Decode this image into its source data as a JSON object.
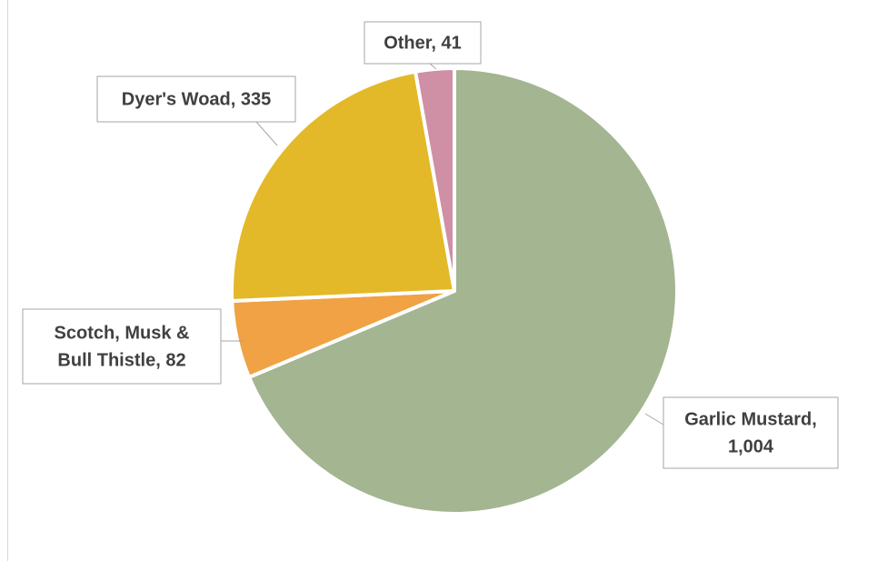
{
  "chart_data": {
    "type": "pie",
    "title": "",
    "start_angle_deg": 0,
    "direction": "clockwise",
    "slices": [
      {
        "name": "Garlic Mustard",
        "value": 1004,
        "label_lines": [
          "Garlic Mustard,",
          "1,004"
        ],
        "color": "#a4b592"
      },
      {
        "name": "Scotch, Musk & Bull Thistle",
        "value": 82,
        "label_lines": [
          "Scotch, Musk &",
          "Bull Thistle, 82"
        ],
        "color": "#f0a244"
      },
      {
        "name": "Dyer's Woad",
        "value": 335,
        "label_lines": [
          "Dyer's Woad, 335"
        ],
        "color": "#e3b929"
      },
      {
        "name": "Other",
        "value": 41,
        "label_lines": [
          "Other, 41"
        ],
        "color": "#cf8fa5"
      }
    ]
  }
}
